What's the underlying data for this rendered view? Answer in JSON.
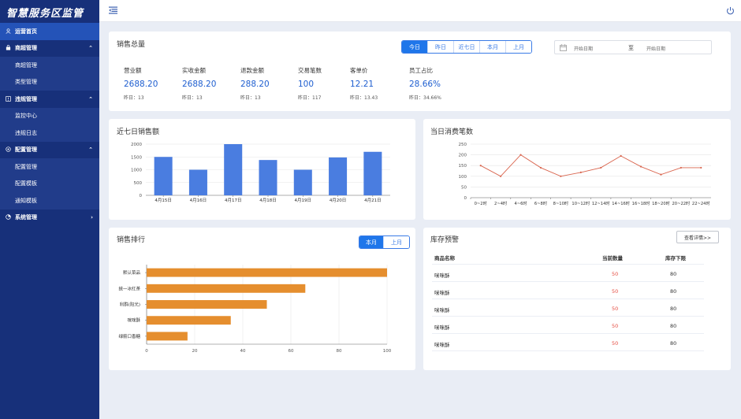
{
  "app": {
    "logo": "智慧服务区监管"
  },
  "sidebar": {
    "items": [
      {
        "label": "运营首页",
        "icon": "user-icon",
        "active": true
      },
      {
        "label": "商超管理",
        "icon": "bag-icon",
        "chevron": "⌃"
      },
      {
        "label": "商超管理",
        "sub": true
      },
      {
        "label": "类型管理",
        "sub": true
      },
      {
        "label": "违规管理",
        "icon": "warning-icon",
        "chevron": "⌃"
      },
      {
        "label": "监控中心",
        "sub": true
      },
      {
        "label": "违规日志",
        "sub": true
      },
      {
        "label": "配置管理",
        "icon": "settings-icon",
        "chevron": "⌃"
      },
      {
        "label": "配置管理",
        "sub": true
      },
      {
        "label": "配置模板",
        "sub": true
      },
      {
        "label": "通知模板",
        "sub": true
      },
      {
        "label": "系统管理",
        "icon": "system-icon",
        "chevron": "›"
      }
    ]
  },
  "sales_total": {
    "title": "销售总量",
    "tabs": [
      "今日",
      "昨日",
      "近七日",
      "本月",
      "上月"
    ],
    "active_tab": 0,
    "date_start_placeholder": "开始日期",
    "date_sep": "至",
    "date_end_placeholder": "开始日期",
    "metrics": [
      {
        "label": "营业额",
        "value": "2688.20",
        "sub": "昨日：13"
      },
      {
        "label": "实收金额",
        "value": "2688.20",
        "sub": "昨日：13"
      },
      {
        "label": "退款金额",
        "value": "288.20",
        "sub": "昨日：13"
      },
      {
        "label": "交易笔数",
        "value": "100",
        "sub": "昨日：117"
      },
      {
        "label": "客单价",
        "value": "12.21",
        "sub": "昨日：13.43"
      },
      {
        "label": "员工占比",
        "value": "28.66%",
        "sub": "昨日：34.66%"
      }
    ]
  },
  "weekly_sales": {
    "title": "近七日销售额"
  },
  "daily_count": {
    "title": "当日消费笔数"
  },
  "ranking": {
    "title": "销售排行",
    "tabs": [
      "本月",
      "上月"
    ],
    "active_tab": 0
  },
  "stock": {
    "title": "库存预警",
    "detail_button": "查看详情>>",
    "headers": [
      "商品名称",
      "当前数量",
      "库存下限"
    ],
    "rows": [
      [
        "咪咪酥",
        "50",
        "80"
      ],
      [
        "咪咪酥",
        "50",
        "80"
      ],
      [
        "咪咪酥",
        "50",
        "80"
      ],
      [
        "咪咪酥",
        "50",
        "80"
      ],
      [
        "咪咪酥",
        "50",
        "80"
      ]
    ]
  },
  "colors": {
    "bar_blue": "#4a7de0",
    "line_red": "#d9654e",
    "bar_orange": "#e58e2e",
    "accent": "#1f76ea",
    "warn_red": "#e54d42"
  },
  "chart_data": [
    {
      "type": "bar",
      "title": "近七日销售额",
      "categories": [
        "4月15日",
        "4月16日",
        "4月17日",
        "4月18日",
        "4月19日",
        "4月20日",
        "4月21日"
      ],
      "values": [
        1500,
        1000,
        2000,
        1380,
        1000,
        1480,
        1700
      ],
      "ylim": [
        0,
        2000
      ],
      "yticks": [
        0,
        500,
        1000,
        1500,
        2000
      ],
      "grid": true
    },
    {
      "type": "line",
      "title": "当日消费笔数",
      "categories": [
        "0~2时",
        "2~4时",
        "4~6时",
        "6~8时",
        "8~10时",
        "10~12时",
        "12~14时",
        "14~16时",
        "16~18时",
        "18~20时",
        "20~22时",
        "22~24时"
      ],
      "values": [
        150,
        100,
        200,
        140,
        100,
        118,
        140,
        195,
        145,
        108,
        140,
        140
      ],
      "ylim": [
        0,
        250
      ],
      "yticks": [
        0,
        50,
        100,
        150,
        200,
        250
      ],
      "grid": true
    },
    {
      "type": "bar",
      "orientation": "horizontal",
      "title": "销售排行",
      "categories": [
        "默认菜品",
        "统一冰红茶",
        "利群(阳光)",
        "咪咪酥",
        "绿箭口香糖"
      ],
      "values": [
        100,
        66,
        50,
        35,
        17
      ],
      "xlim": [
        0,
        100
      ],
      "xticks": [
        0,
        20,
        40,
        60,
        80,
        100
      ],
      "grid": true
    }
  ]
}
